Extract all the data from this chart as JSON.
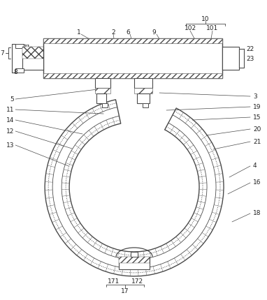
{
  "bg_color": "#ffffff",
  "line_color": "#4a4a4a",
  "fig_width": 3.82,
  "fig_height": 4.3,
  "dpi": 100
}
